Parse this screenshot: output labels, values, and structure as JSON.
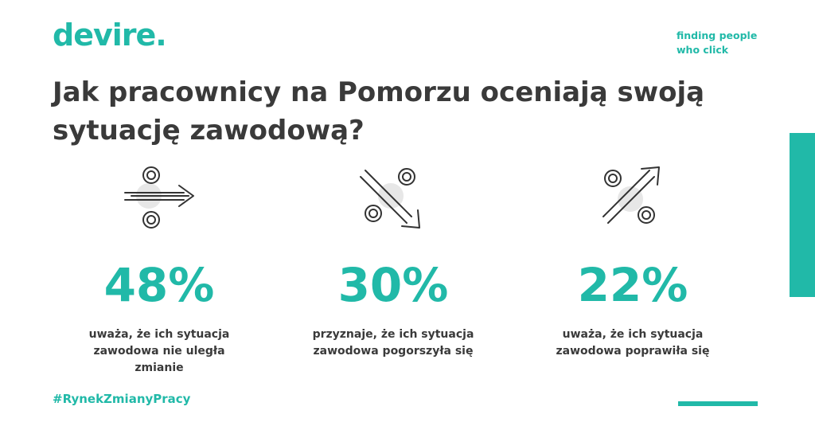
{
  "brand": {
    "logo": "devire.",
    "tagline_line1": "finding people",
    "tagline_line2": "who click",
    "accent_color": "#21b9a8"
  },
  "title": "Jak pracownicy na Pomorzu oceniają swoją sytuację zawodową?",
  "stats": [
    {
      "value": "48%",
      "description": "uważa, że ich sytuacja zawodowa nie uległa zmianie",
      "icon": "percent-arrow-right-icon"
    },
    {
      "value": "30%",
      "description": "przyznaje, że ich sytuacja zawodowa pogorszyła się",
      "icon": "percent-arrow-down-icon"
    },
    {
      "value": "22%",
      "description": "uważa, że ich sytuacja zawodowa poprawiła się",
      "icon": "percent-arrow-up-icon"
    }
  ],
  "hashtag": "#RynekZmianyPracy"
}
